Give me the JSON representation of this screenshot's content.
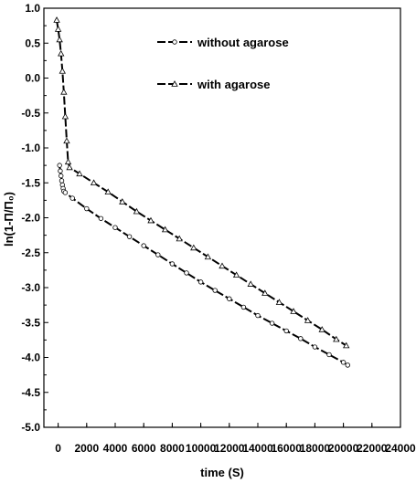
{
  "chart_data": {
    "type": "line",
    "title": "",
    "xlabel": "time (S)",
    "ylabel": "ln(1-Π/Π₀)",
    "xlim": [
      -1000,
      24000
    ],
    "ylim": [
      -5.0,
      1.0
    ],
    "xticks": [
      0,
      2000,
      4000,
      6000,
      8000,
      10000,
      12000,
      14000,
      16000,
      18000,
      20000,
      22000,
      24000
    ],
    "xtick_labels": [
      "0",
      "2000",
      "4000",
      "6000",
      "8000",
      "10000",
      "12000",
      "14000",
      "16000",
      "18000",
      "20000",
      "22000",
      "24000"
    ],
    "yticks": [
      1.0,
      0.5,
      0.0,
      -0.5,
      -1.0,
      -1.5,
      -2.0,
      -2.5,
      -3.0,
      -3.5,
      -4.0,
      -4.5,
      -5.0
    ],
    "ytick_labels": [
      "1.0",
      "0.5",
      "0.0",
      "-0.5",
      "-1.0",
      "-1.5",
      "-2.0",
      "-2.5",
      "-3.0",
      "-3.5",
      "-4.0",
      "-4.5",
      "-5.0"
    ],
    "legend_position": "top-center",
    "series": [
      {
        "name": "without agarose",
        "marker": "circle",
        "points": [
          [
            100,
            -1.25
          ],
          [
            150,
            -1.33
          ],
          [
            200,
            -1.4
          ],
          [
            250,
            -1.47
          ],
          [
            300,
            -1.53
          ],
          [
            350,
            -1.58
          ],
          [
            400,
            -1.62
          ],
          [
            500,
            -1.64
          ],
          [
            1000,
            -1.72
          ],
          [
            2000,
            -1.87
          ],
          [
            3000,
            -2.01
          ],
          [
            4000,
            -2.14
          ],
          [
            5000,
            -2.27
          ],
          [
            6000,
            -2.4
          ],
          [
            7000,
            -2.53
          ],
          [
            8000,
            -2.66
          ],
          [
            9000,
            -2.79
          ],
          [
            10000,
            -2.92
          ],
          [
            11000,
            -3.04
          ],
          [
            12000,
            -3.16
          ],
          [
            13000,
            -3.28
          ],
          [
            14000,
            -3.4
          ],
          [
            15000,
            -3.51
          ],
          [
            16000,
            -3.62
          ],
          [
            17000,
            -3.73
          ],
          [
            18000,
            -3.85
          ],
          [
            19000,
            -3.96
          ],
          [
            20000,
            -4.07
          ],
          [
            20300,
            -4.11
          ]
        ]
      },
      {
        "name": "with agarose",
        "marker": "triangle",
        "points": [
          [
            -100,
            0.83
          ],
          [
            0,
            0.7
          ],
          [
            100,
            0.55
          ],
          [
            200,
            0.35
          ],
          [
            300,
            0.1
          ],
          [
            400,
            -0.2
          ],
          [
            500,
            -0.55
          ],
          [
            600,
            -0.9
          ],
          [
            700,
            -1.2
          ],
          [
            800,
            -1.28
          ],
          [
            1500,
            -1.37
          ],
          [
            2500,
            -1.5
          ],
          [
            3500,
            -1.63
          ],
          [
            4500,
            -1.77
          ],
          [
            5500,
            -1.91
          ],
          [
            6500,
            -2.04
          ],
          [
            7500,
            -2.17
          ],
          [
            8500,
            -2.3
          ],
          [
            9500,
            -2.43
          ],
          [
            10500,
            -2.56
          ],
          [
            11500,
            -2.69
          ],
          [
            12500,
            -2.82
          ],
          [
            13500,
            -2.95
          ],
          [
            14500,
            -3.08
          ],
          [
            15500,
            -3.21
          ],
          [
            16500,
            -3.34
          ],
          [
            17500,
            -3.47
          ],
          [
            18500,
            -3.6
          ],
          [
            19500,
            -3.74
          ],
          [
            20200,
            -3.83
          ]
        ]
      }
    ]
  }
}
